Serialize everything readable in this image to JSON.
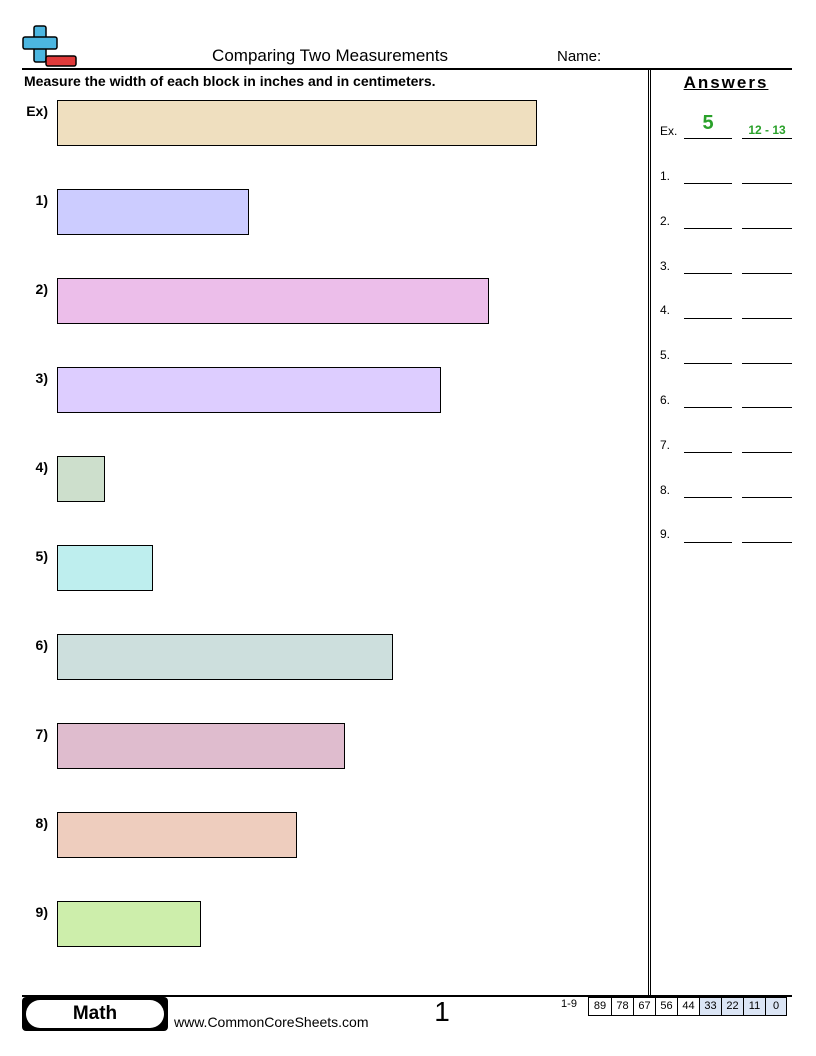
{
  "header": {
    "title": "Comparing Two Measurements",
    "name_label": "Name:"
  },
  "instructions": "Measure the width of each block in inches and in centimeters.",
  "questions": [
    {
      "label": "Ex)",
      "color": "#efdfbf"
    },
    {
      "label": "1)",
      "color": "#ccccff"
    },
    {
      "label": "2)",
      "color": "#ecbeea"
    },
    {
      "label": "3)",
      "color": "#ddcdff"
    },
    {
      "label": "4)",
      "color": "#cddfcc"
    },
    {
      "label": "5)",
      "color": "#beeeee"
    },
    {
      "label": "6)",
      "color": "#cddfdd"
    },
    {
      "label": "7)",
      "color": "#dfbcce"
    },
    {
      "label": "8)",
      "color": "#eecdbe"
    },
    {
      "label": "9)",
      "color": "#cdeeab"
    }
  ],
  "answers": {
    "heading": "Answers",
    "example": {
      "label": "Ex.",
      "inches": "5",
      "centimeters": "12 - 13",
      "color": "#2aa12a"
    },
    "rows": [
      "1.",
      "2.",
      "3.",
      "4.",
      "5.",
      "6.",
      "7.",
      "8.",
      "9."
    ]
  },
  "footer": {
    "badge": "Math",
    "website": "www.CommonCoreSheets.com",
    "page_number": "1",
    "range": "1-9",
    "scores": [
      "89",
      "78",
      "67",
      "56",
      "44",
      "33",
      "22",
      "11",
      "0"
    ],
    "score_highlight_color": "#dbe5f5"
  },
  "logo_colors": {
    "plus": "#4cb6e0",
    "minus": "#e03a3a"
  }
}
